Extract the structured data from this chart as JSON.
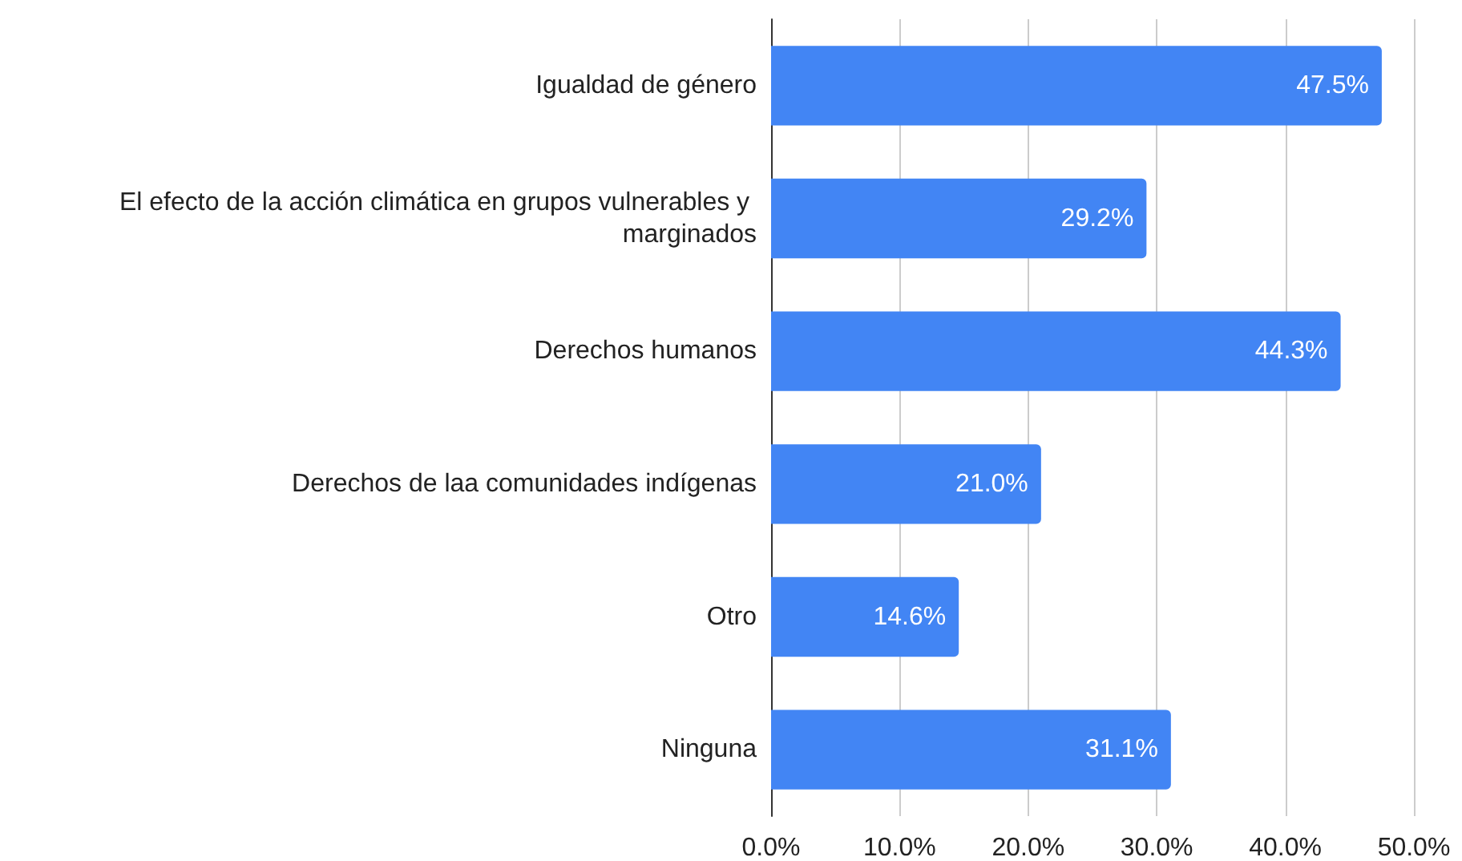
{
  "chart_data": {
    "type": "bar",
    "orientation": "horizontal",
    "categories": [
      "Igualdad de género",
      "El efecto de la acción climática en grupos vulnerables y marginados",
      "Derechos humanos",
      "Derechos de laa comunidades indígenas",
      "Otro",
      "Ninguna"
    ],
    "values": [
      47.5,
      29.2,
      44.3,
      21.0,
      14.6,
      31.1
    ],
    "value_labels": [
      "47.5%",
      "29.2%",
      "44.3%",
      "21.0%",
      "14.6%",
      "31.1%"
    ],
    "color": "#4285f4",
    "xlim": [
      0,
      50
    ],
    "xticks": [
      {
        "value": 0,
        "label": "0.0%"
      },
      {
        "value": 10,
        "label": "10.0%"
      },
      {
        "value": 20,
        "label": "20.0%"
      },
      {
        "value": 30,
        "label": "30.0%"
      },
      {
        "value": 40,
        "label": "40.0%"
      },
      {
        "value": 50,
        "label": "50.0%"
      }
    ],
    "grid": "x"
  }
}
